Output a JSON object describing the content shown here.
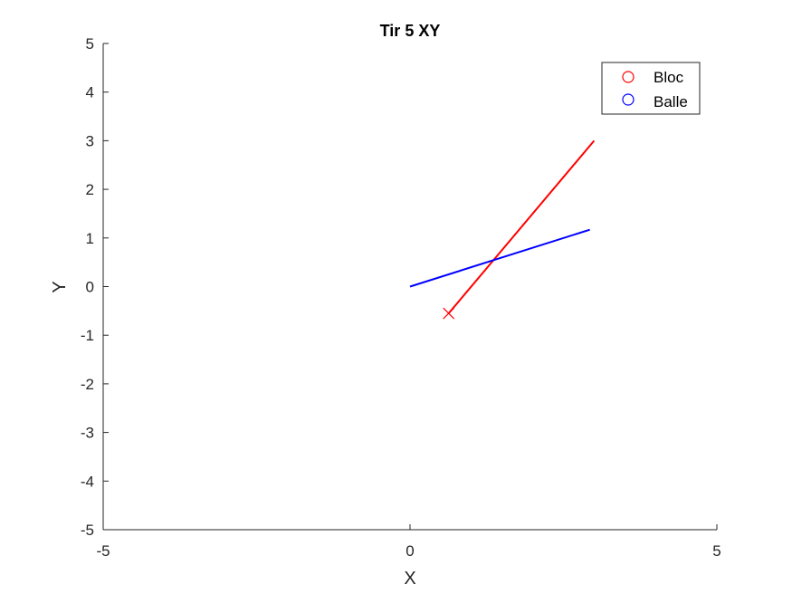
{
  "chart_data": {
    "type": "line",
    "title": "Tir 5 XY",
    "xlabel": "X",
    "ylabel": "Y",
    "xlim": [
      -5,
      5
    ],
    "ylim": [
      -5,
      5
    ],
    "xticks": [
      -5,
      0,
      5
    ],
    "xtick_labels": [
      "-5",
      "0",
      "5"
    ],
    "yticks": [
      -5,
      -4,
      -3,
      -2,
      -1,
      0,
      1,
      2,
      3,
      4,
      5
    ],
    "ytick_labels": [
      "-5",
      "-4",
      "-3",
      "-2",
      "-1",
      "0",
      "1",
      "2",
      "3",
      "4",
      "5"
    ],
    "grid": false,
    "legend_position": "top-right",
    "series": [
      {
        "name": "Bloc",
        "color": "#ff0000",
        "legend_marker": "circle",
        "x": [
          0.63,
          3.0
        ],
        "y": [
          -0.55,
          3.0
        ],
        "end_marker": "x",
        "end_marker_point": [
          0.63,
          -0.55
        ]
      },
      {
        "name": "Balle",
        "color": "#0000ff",
        "legend_marker": "circle",
        "x": [
          0.0,
          2.93
        ],
        "y": [
          0.0,
          1.17
        ]
      }
    ]
  }
}
